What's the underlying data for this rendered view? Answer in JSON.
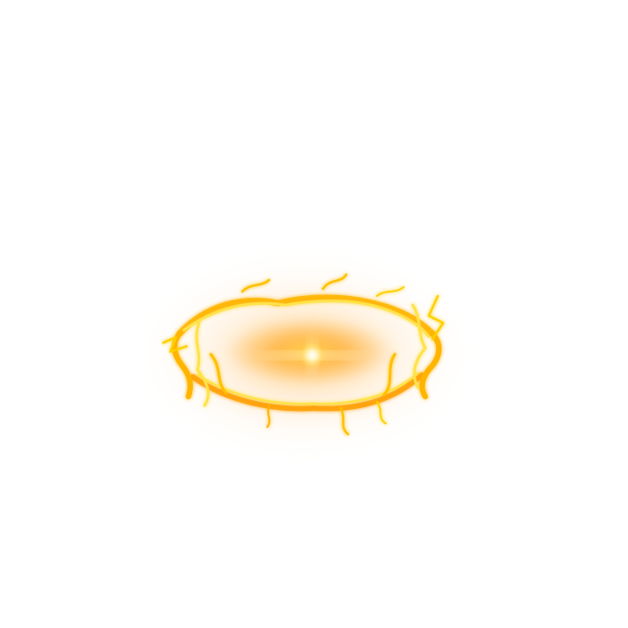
{
  "scene": {
    "background": "#ffffff",
    "subject": "fire-ring-effect",
    "colors": {
      "halo": "#ffd9a8",
      "core": "#ffb23a",
      "flame_bright": "#ffe24a",
      "flame_mid": "#ffb400",
      "flame_deep": "#ff8a00",
      "spark": "#fff8d0"
    }
  }
}
